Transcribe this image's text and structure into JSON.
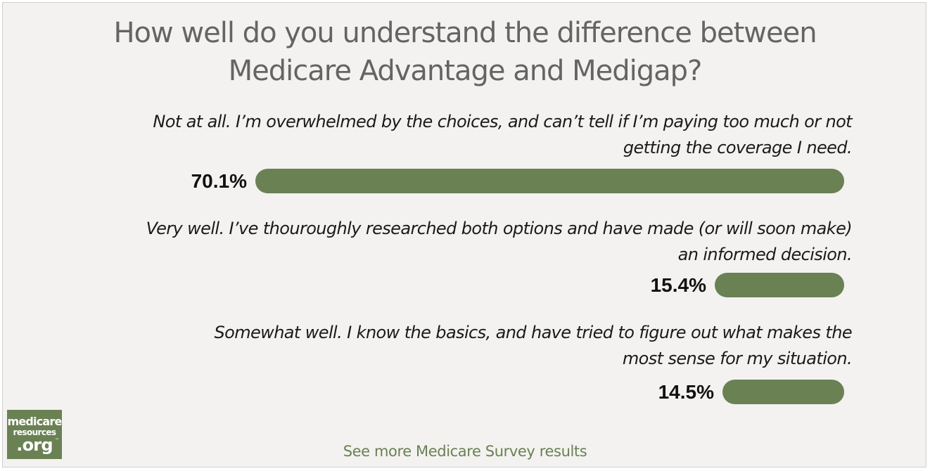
{
  "title_lines": [
    "How well do you understand the difference between",
    "Medicare Advantage and Medigap?"
  ],
  "chart_data": {
    "type": "bar",
    "orientation": "horizontal",
    "categories": [
      "Not at all. I’m overwhelmed by the choices, and can’t tell if I’m paying too much or not getting the coverage I need.",
      "Very well. I’ve thouroughly researched both options and have made (or will soon make) an informed decision.",
      "Somewhat well. I know the basics, and have tried to figure out what makes the most sense for my situation."
    ],
    "values": [
      70.1,
      15.4,
      14.5
    ],
    "value_labels": [
      "70.1%",
      "15.4%",
      "14.5%"
    ],
    "category_lines": [
      [
        "Not at all. I’m overwhelmed by the choices, and can’t tell if I’m paying too much or not",
        "getting the coverage I need."
      ],
      [
        "Very well. I’ve thouroughly researched both options and have made (or will soon make)",
        "an informed decision."
      ],
      [
        "Somewhat well. I know the basics, and have tried to figure out what makes the",
        "most sense for my situation."
      ]
    ],
    "bar_color": "#6a8154",
    "grid": false,
    "legend": "none"
  },
  "logo": {
    "line1": "medicare",
    "line2": "resources",
    "line3": ".org",
    "tm": "™",
    "color": "#6a8154"
  },
  "footer_link": "See more Medicare Survey results"
}
